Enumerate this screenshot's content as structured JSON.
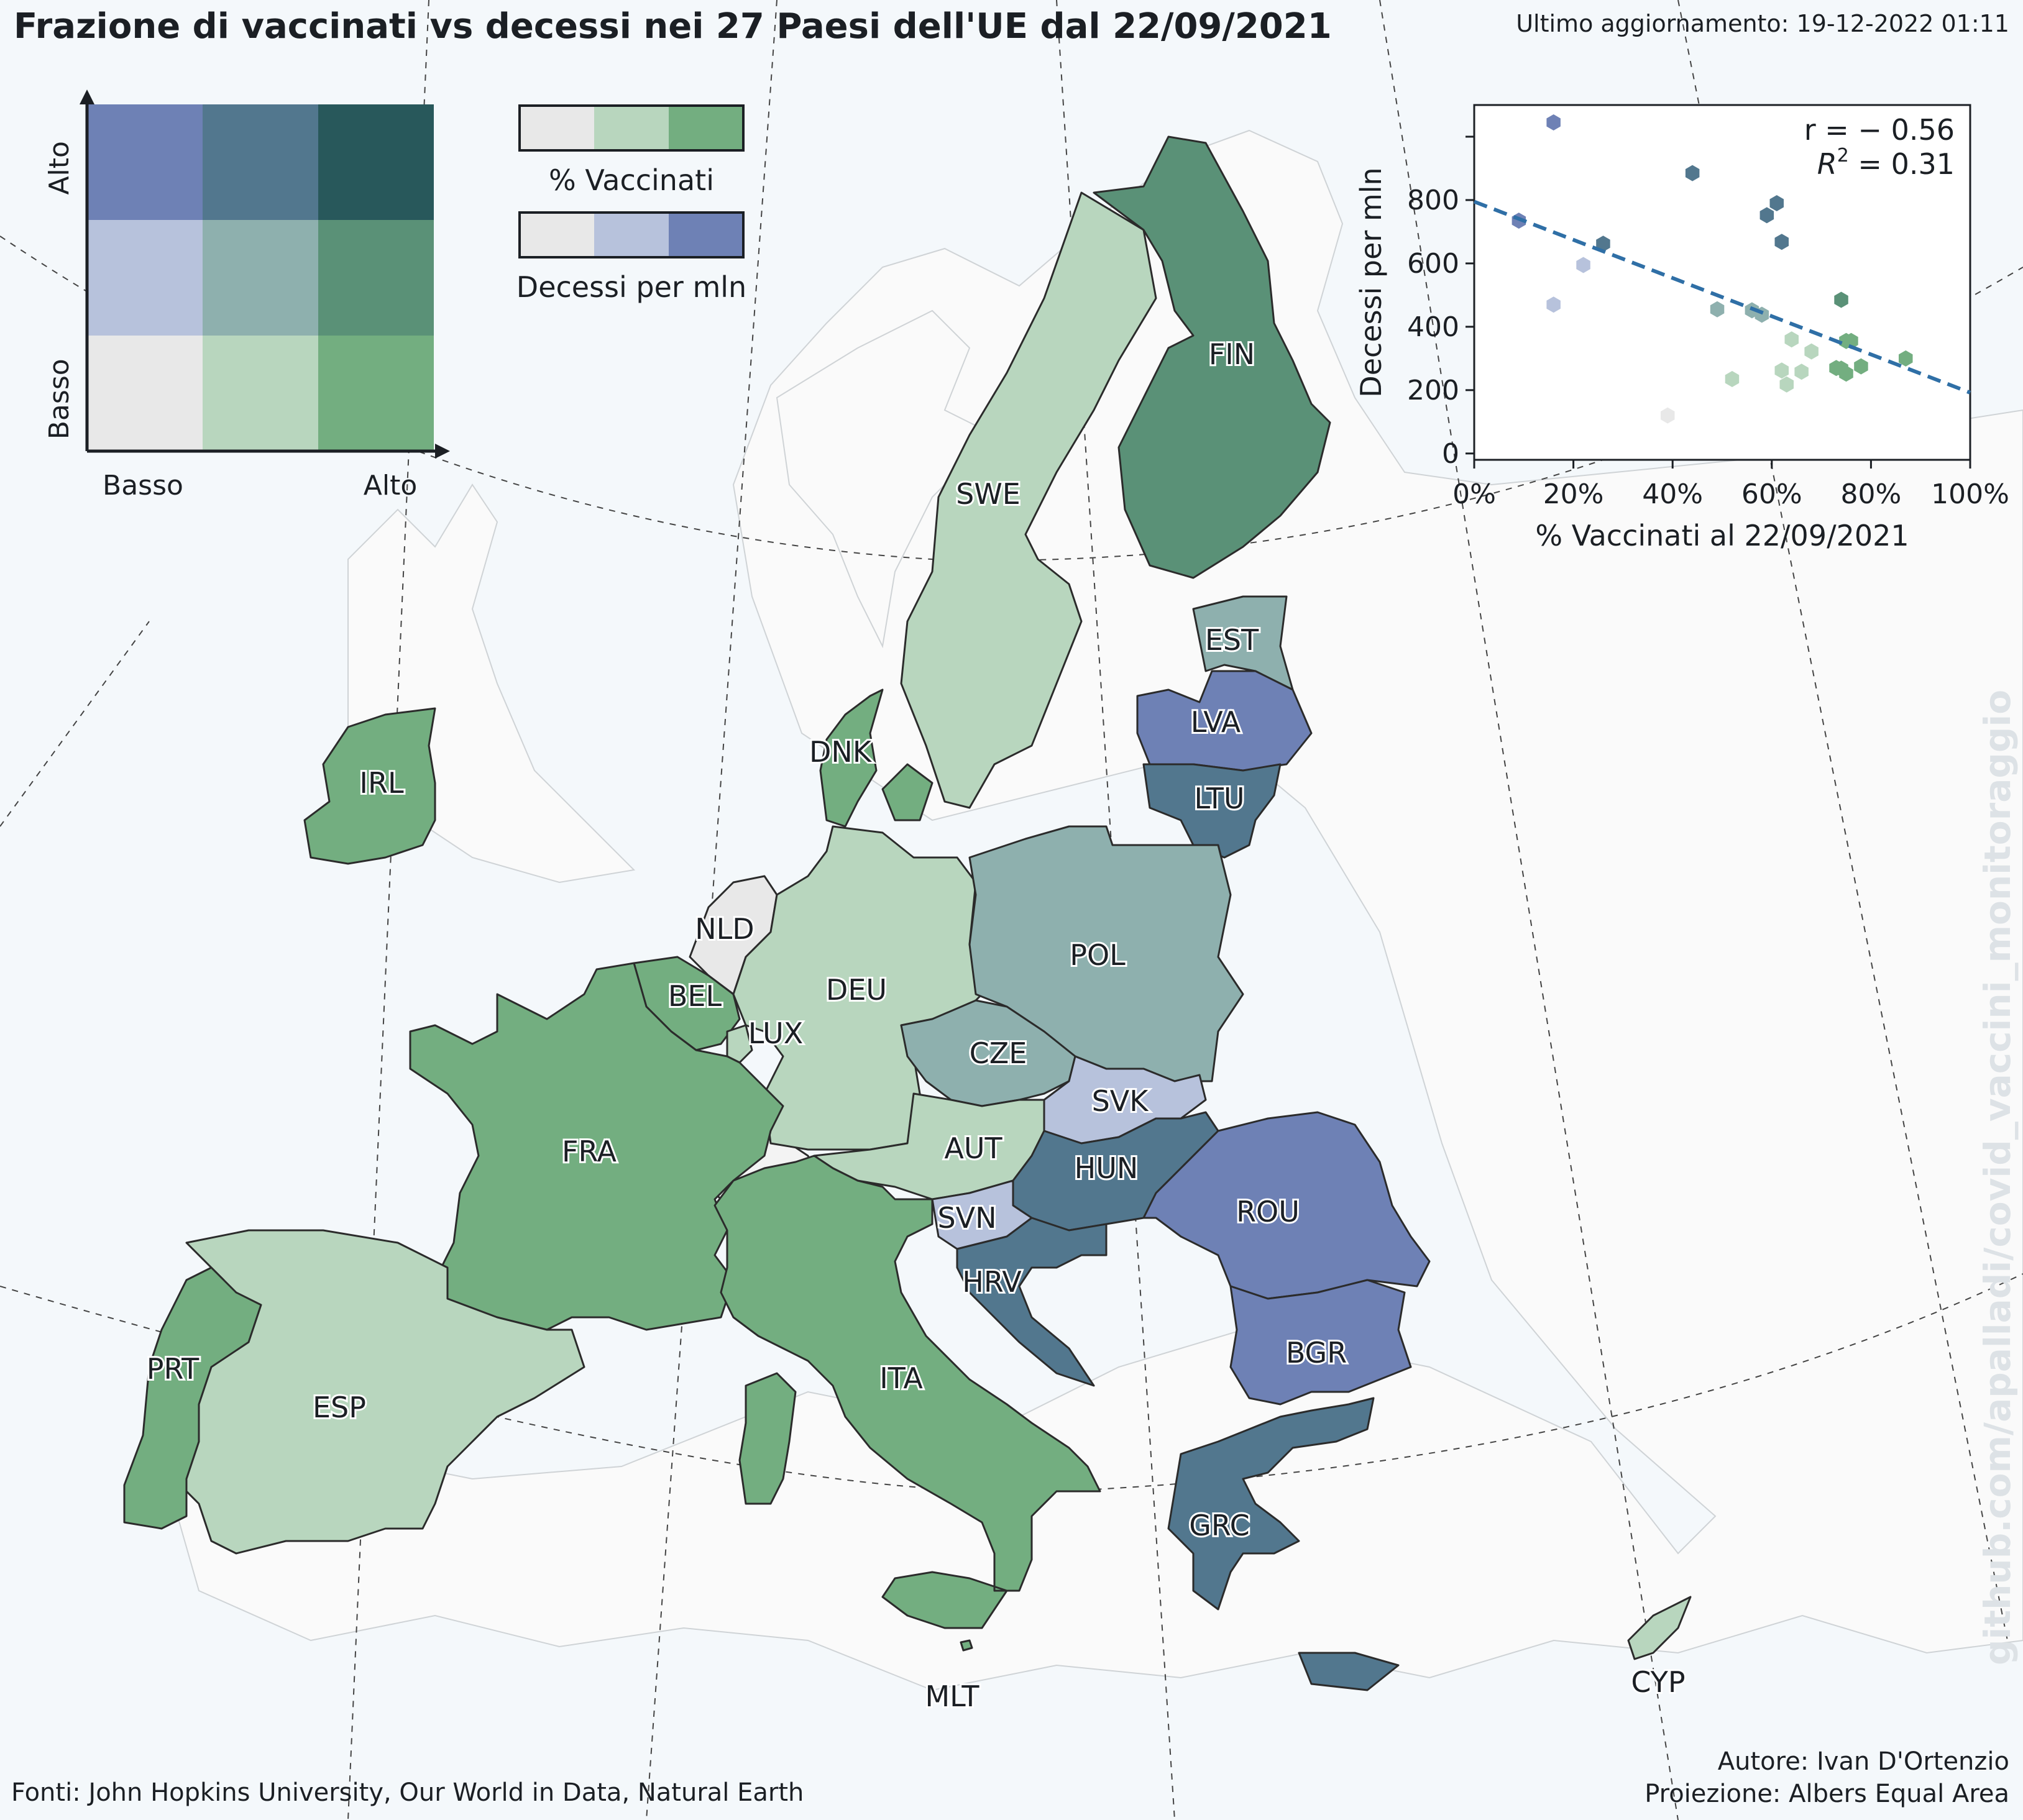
{
  "header": {
    "title": "Frazione di vaccinati vs decessi nei 27 Paesi dell'UE dal 22/09/2021",
    "updated": "Ultimo aggiornamento: 19-12-2022 01:11"
  },
  "footer": {
    "source": "Fonti: John Hopkins University, Our World in Data, Natural Earth",
    "author": "Autore: Ivan D'Ortenzio",
    "projection": "Proiezione: Albers Equal Area",
    "watermark": "github.com/apalladi/covid_vaccini_monitoraggio"
  },
  "bivariate_legend": {
    "y_label_high": "Alto",
    "y_label_low": "Basso",
    "x_label_low": "Basso",
    "x_label_high": "Alto",
    "grid_colors": [
      [
        "#6e81b5",
        "#52778e",
        "#28585b"
      ],
      [
        "#b7c2dc",
        "#8eb0ae",
        "#5a9177"
      ],
      [
        "#e8e8e8",
        "#b8d6be",
        "#73ae80"
      ]
    ]
  },
  "scale_legends": {
    "vaccinated": {
      "label": "% Vaccinati",
      "colors": [
        "#e8e8e8",
        "#b8d6be",
        "#73ae80"
      ]
    },
    "deaths": {
      "label": "Decessi per mln",
      "colors": [
        "#e8e8e8",
        "#b7c2dc",
        "#6e81b5"
      ]
    }
  },
  "map": {
    "countries": [
      {
        "code": "SWE",
        "label": "SWE",
        "color": "#b8d6be"
      },
      {
        "code": "FIN",
        "label": "FIN",
        "color": "#5a9177"
      },
      {
        "code": "EST",
        "label": "EST",
        "color": "#8eb0ae"
      },
      {
        "code": "LVA",
        "label": "LVA",
        "color": "#6e81b5"
      },
      {
        "code": "LTU",
        "label": "LTU",
        "color": "#52778e"
      },
      {
        "code": "DNK",
        "label": "DNK",
        "color": "#73ae80"
      },
      {
        "code": "IRL",
        "label": "IRL",
        "color": "#73ae80"
      },
      {
        "code": "NLD",
        "label": "NLD",
        "color": "#e8e8e8"
      },
      {
        "code": "BEL",
        "label": "BEL",
        "color": "#73ae80"
      },
      {
        "code": "LUX",
        "label": "LUX",
        "color": "#b8d6be"
      },
      {
        "code": "DEU",
        "label": "DEU",
        "color": "#b8d6be"
      },
      {
        "code": "POL",
        "label": "POL",
        "color": "#8eb0ae"
      },
      {
        "code": "CZE",
        "label": "CZE",
        "color": "#8eb0ae"
      },
      {
        "code": "SVK",
        "label": "SVK",
        "color": "#b7c2dc"
      },
      {
        "code": "AUT",
        "label": "AUT",
        "color": "#b8d6be"
      },
      {
        "code": "HUN",
        "label": "HUN",
        "color": "#52778e"
      },
      {
        "code": "SVN",
        "label": "SVN",
        "color": "#b7c2dc"
      },
      {
        "code": "HRV",
        "label": "HRV",
        "color": "#52778e"
      },
      {
        "code": "ROU",
        "label": "ROU",
        "color": "#6e81b5"
      },
      {
        "code": "BGR",
        "label": "BGR",
        "color": "#6e81b5"
      },
      {
        "code": "FRA",
        "label": "FRA",
        "color": "#73ae80"
      },
      {
        "code": "ITA",
        "label": "ITA",
        "color": "#73ae80"
      },
      {
        "code": "ESP",
        "label": "ESP",
        "color": "#b8d6be"
      },
      {
        "code": "PRT",
        "label": "PRT",
        "color": "#73ae80"
      },
      {
        "code": "GRC",
        "label": "GRC",
        "color": "#52778e"
      },
      {
        "code": "MLT",
        "label": "MLT",
        "color": "#73ae80"
      },
      {
        "code": "CYP",
        "label": "CYP",
        "color": "#b8d6be"
      }
    ],
    "non_eu_fill": "#fafafa",
    "eu_outline": "#2b2b2b",
    "ocean": "#f4f8fb"
  },
  "chart_data": {
    "type": "scatter",
    "xlabel": "% Vaccinati al 22/09/2021",
    "ylabel": "Decessi per mln",
    "xlim": [
      0,
      100
    ],
    "ylim": [
      -20,
      1100
    ],
    "xticks": [
      0,
      20,
      40,
      60,
      80,
      100
    ],
    "xtick_labels": [
      "0%",
      "20%",
      "40%",
      "60%",
      "80%",
      "100%"
    ],
    "yticks": [
      0,
      200,
      400,
      600,
      800
    ],
    "annotation_r": "r =  − 0.56",
    "annotation_r2": "R",
    "annotation_r2_sup": "2",
    "annotation_r2_value": "  =  0.31",
    "regression": {
      "x": [
        0,
        100
      ],
      "y": [
        795,
        192
      ],
      "color": "#2f6fa6",
      "style": "dashed"
    },
    "points": [
      {
        "x": 16,
        "y": 1045,
        "color": "#6e81b5"
      },
      {
        "x": 9,
        "y": 735,
        "color": "#6e81b5"
      },
      {
        "x": 44,
        "y": 885,
        "color": "#52778e"
      },
      {
        "x": 61,
        "y": 790,
        "color": "#52778e"
      },
      {
        "x": 59,
        "y": 752,
        "color": "#52778e"
      },
      {
        "x": 62,
        "y": 668,
        "color": "#52778e"
      },
      {
        "x": 26,
        "y": 662,
        "color": "#52778e"
      },
      {
        "x": 22,
        "y": 595,
        "color": "#b7c2dc"
      },
      {
        "x": 16,
        "y": 470,
        "color": "#b7c2dc"
      },
      {
        "x": 49,
        "y": 455,
        "color": "#8eb0ae"
      },
      {
        "x": 56,
        "y": 452,
        "color": "#8eb0ae"
      },
      {
        "x": 58,
        "y": 438,
        "color": "#8eb0ae"
      },
      {
        "x": 74,
        "y": 485,
        "color": "#5a9177"
      },
      {
        "x": 64,
        "y": 360,
        "color": "#b8d6be"
      },
      {
        "x": 68,
        "y": 322,
        "color": "#b8d6be"
      },
      {
        "x": 62,
        "y": 262,
        "color": "#b8d6be"
      },
      {
        "x": 66,
        "y": 258,
        "color": "#b8d6be"
      },
      {
        "x": 63,
        "y": 218,
        "color": "#b8d6be"
      },
      {
        "x": 52,
        "y": 235,
        "color": "#b8d6be"
      },
      {
        "x": 75,
        "y": 355,
        "color": "#73ae80"
      },
      {
        "x": 76,
        "y": 355,
        "color": "#73ae80"
      },
      {
        "x": 73,
        "y": 270,
        "color": "#73ae80"
      },
      {
        "x": 74,
        "y": 268,
        "color": "#73ae80"
      },
      {
        "x": 75,
        "y": 252,
        "color": "#73ae80"
      },
      {
        "x": 78,
        "y": 275,
        "color": "#73ae80"
      },
      {
        "x": 87,
        "y": 300,
        "color": "#73ae80"
      },
      {
        "x": 39,
        "y": 120,
        "color": "#e8e8e8"
      }
    ]
  }
}
